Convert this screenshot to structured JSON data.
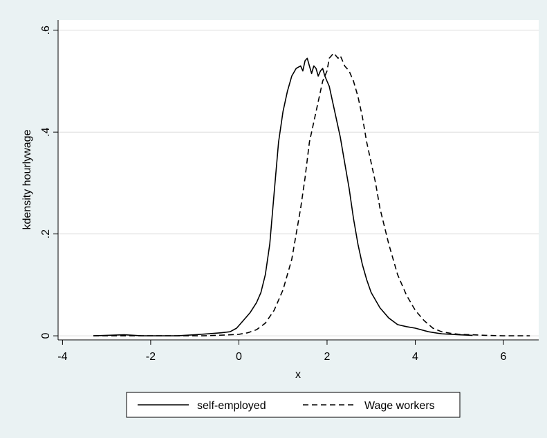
{
  "chart_data": {
    "type": "line",
    "title": "",
    "xlabel": "x",
    "ylabel": "kdensity hourlywage",
    "xlim": [
      -4.1,
      6.8
    ],
    "ylim": [
      -0.008,
      0.62
    ],
    "xticks": [
      -4,
      -2,
      0,
      2,
      4,
      6
    ],
    "xtick_labels": [
      "-4",
      "-2",
      "0",
      "2",
      "4",
      "6"
    ],
    "yticks": [
      0,
      0.2,
      0.4,
      0.6
    ],
    "ytick_labels": [
      "0",
      ".2",
      ".4",
      ".6"
    ],
    "grid": "horizontal",
    "legend_position": "bottom",
    "series": [
      {
        "name": "self-employed",
        "style": "solid",
        "color": "#000000",
        "x": [
          -3.3,
          -3.0,
          -2.6,
          -2.2,
          -1.8,
          -1.4,
          -1.0,
          -0.7,
          -0.4,
          -0.2,
          -0.05,
          0.1,
          0.25,
          0.4,
          0.5,
          0.6,
          0.7,
          0.8,
          0.9,
          1.0,
          1.1,
          1.2,
          1.3,
          1.4,
          1.45,
          1.5,
          1.55,
          1.6,
          1.65,
          1.7,
          1.75,
          1.8,
          1.85,
          1.9,
          1.95,
          2.0,
          2.05,
          2.1,
          2.2,
          2.3,
          2.4,
          2.5,
          2.6,
          2.7,
          2.8,
          2.9,
          3.0,
          3.2,
          3.4,
          3.6,
          3.8,
          4.0,
          4.3,
          4.6,
          5.0,
          5.3
        ],
        "y": [
          0.0,
          0.001,
          0.002,
          0.0,
          0.0,
          0.0,
          0.002,
          0.004,
          0.006,
          0.008,
          0.015,
          0.03,
          0.045,
          0.065,
          0.085,
          0.12,
          0.18,
          0.28,
          0.38,
          0.44,
          0.48,
          0.51,
          0.525,
          0.53,
          0.52,
          0.54,
          0.545,
          0.53,
          0.515,
          0.53,
          0.525,
          0.51,
          0.52,
          0.525,
          0.51,
          0.5,
          0.49,
          0.47,
          0.43,
          0.39,
          0.34,
          0.29,
          0.23,
          0.18,
          0.14,
          0.11,
          0.085,
          0.055,
          0.035,
          0.022,
          0.018,
          0.015,
          0.008,
          0.004,
          0.002,
          0.001
        ]
      },
      {
        "name": "Wage workers",
        "style": "dashed",
        "color": "#000000",
        "x": [
          -3.3,
          -2.8,
          -2.4,
          -2.0,
          -1.6,
          -1.2,
          -0.8,
          -0.5,
          -0.2,
          0.0,
          0.2,
          0.4,
          0.6,
          0.8,
          1.0,
          1.2,
          1.4,
          1.5,
          1.6,
          1.7,
          1.8,
          1.9,
          2.0,
          2.05,
          2.1,
          2.15,
          2.2,
          2.25,
          2.3,
          2.35,
          2.4,
          2.5,
          2.6,
          2.7,
          2.8,
          2.9,
          3.0,
          3.1,
          3.2,
          3.4,
          3.6,
          3.8,
          4.0,
          4.2,
          4.4,
          4.6,
          4.8,
          5.0,
          5.3,
          5.6,
          6.0,
          6.3,
          6.6
        ],
        "y": [
          0.0,
          0.0,
          0.0,
          0.0,
          0.0,
          0.0,
          0.0,
          0.001,
          0.002,
          0.003,
          0.006,
          0.012,
          0.025,
          0.05,
          0.09,
          0.15,
          0.25,
          0.31,
          0.38,
          0.42,
          0.46,
          0.5,
          0.52,
          0.545,
          0.55,
          0.555,
          0.55,
          0.545,
          0.55,
          0.54,
          0.53,
          0.52,
          0.5,
          0.47,
          0.43,
          0.38,
          0.34,
          0.3,
          0.25,
          0.18,
          0.12,
          0.08,
          0.05,
          0.03,
          0.015,
          0.008,
          0.005,
          0.003,
          0.002,
          0.001,
          0.0,
          0.0,
          0.0
        ]
      }
    ]
  }
}
